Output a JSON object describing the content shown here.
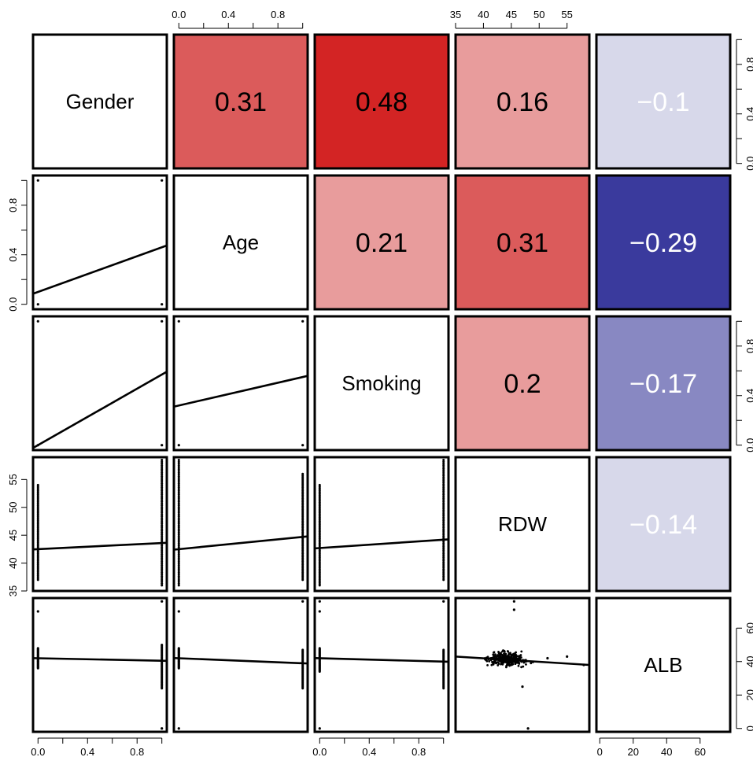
{
  "chart_data": {
    "type": "scatterplot-matrix",
    "variables": [
      "Gender",
      "Age",
      "Smoking",
      "RDW",
      "ALB"
    ],
    "correlations": [
      {
        "row": 0,
        "col": 1,
        "value": 0.31,
        "label": "0.31"
      },
      {
        "row": 0,
        "col": 2,
        "value": 0.48,
        "label": "0.48"
      },
      {
        "row": 0,
        "col": 3,
        "value": 0.16,
        "label": "0.16"
      },
      {
        "row": 0,
        "col": 4,
        "value": -0.1,
        "label": "−0.1"
      },
      {
        "row": 1,
        "col": 2,
        "value": 0.21,
        "label": "0.21"
      },
      {
        "row": 1,
        "col": 3,
        "value": 0.31,
        "label": "0.31"
      },
      {
        "row": 1,
        "col": 4,
        "value": -0.29,
        "label": "−0.29"
      },
      {
        "row": 2,
        "col": 3,
        "value": 0.2,
        "label": "0.2"
      },
      {
        "row": 2,
        "col": 4,
        "value": -0.17,
        "label": "−0.17"
      },
      {
        "row": 3,
        "col": 4,
        "value": -0.14,
        "label": "−0.14"
      }
    ],
    "cell_colors": {
      "0-1": "#db5b5b",
      "0-2": "#d32424",
      "0-3": "#e89c9c",
      "0-4": "#d7d8ea",
      "1-2": "#e89c9c",
      "1-3": "#db5b5b",
      "1-4": "#3a3a9d",
      "2-3": "#e89c9c",
      "2-4": "#8888c2",
      "3-4": "#d7d8ea"
    },
    "axes": {
      "binary": {
        "range": [
          0,
          1
        ],
        "ticks": [
          0.0,
          0.4,
          0.8
        ],
        "tick_labels": [
          "0.0",
          "0.4",
          "0.8"
        ]
      },
      "RDW": {
        "range": [
          35,
          59
        ],
        "ticks": [
          35,
          40,
          45,
          50,
          55
        ],
        "tick_labels": [
          "35",
          "40",
          "45",
          "50",
          "55"
        ]
      },
      "ALB": {
        "range": [
          -2,
          78
        ],
        "ticks": [
          0,
          20,
          40,
          60
        ],
        "tick_labels": [
          "0",
          "20",
          "40",
          "60"
        ]
      }
    },
    "fit_lines": [
      {
        "row": 1,
        "col": 0,
        "y_at_x0": 0.1,
        "y_at_x1": 0.46
      },
      {
        "row": 2,
        "col": 0,
        "y_at_x0": 0.0,
        "y_at_x1": 0.57
      },
      {
        "row": 2,
        "col": 1,
        "y_at_x0": 0.32,
        "y_at_x1": 0.55
      },
      {
        "row": 3,
        "col": 0,
        "y_at_x0": 42.5,
        "y_at_x1": 43.6
      },
      {
        "row": 3,
        "col": 1,
        "y_at_x0": 42.5,
        "y_at_x1": 44.7
      },
      {
        "row": 3,
        "col": 2,
        "y_at_x0": 42.7,
        "y_at_x1": 44.2
      },
      {
        "row": 4,
        "col": 0,
        "y_at_x0": 42,
        "y_at_x1": 40.5
      },
      {
        "row": 4,
        "col": 1,
        "y_at_x0": 42,
        "y_at_x1": 39
      },
      {
        "row": 4,
        "col": 2,
        "y_at_x0": 42,
        "y_at_x1": 40
      },
      {
        "row": 4,
        "col": 3,
        "line_x": [
          35,
          59
        ],
        "line_y": [
          43,
          38
        ]
      }
    ],
    "binary_points": [
      {
        "row": 1,
        "col": 0,
        "points": [
          [
            0,
            0
          ],
          [
            0,
            1
          ],
          [
            1,
            0
          ],
          [
            1,
            1
          ]
        ]
      },
      {
        "row": 2,
        "col": 0,
        "points": [
          [
            0,
            0
          ],
          [
            0,
            1
          ],
          [
            1,
            0
          ],
          [
            1,
            1
          ]
        ]
      },
      {
        "row": 2,
        "col": 1,
        "points": [
          [
            0,
            0
          ],
          [
            0,
            1
          ],
          [
            1,
            0
          ],
          [
            1,
            1
          ]
        ]
      }
    ],
    "strip_ranges": [
      {
        "row": 3,
        "col": 0,
        "x0": [
          37,
          54
        ],
        "x1": [
          36,
          58.5
        ]
      },
      {
        "row": 3,
        "col": 1,
        "x0": [
          36,
          58.5
        ],
        "x1": [
          37,
          56
        ]
      },
      {
        "row": 3,
        "col": 2,
        "x0": [
          36,
          54
        ],
        "x1": [
          37,
          58.5
        ]
      },
      {
        "row": 4,
        "col": 0,
        "x0": [
          36,
          48
        ],
        "x1": [
          24,
          50
        ],
        "extra0": [
          70
        ],
        "extra1": [
          76,
          0
        ]
      },
      {
        "row": 4,
        "col": 1,
        "x0": [
          36,
          48
        ],
        "x1": [
          24,
          47
        ],
        "extra0": [
          70,
          0
        ],
        "extra1": [
          76
        ]
      },
      {
        "row": 4,
        "col": 2,
        "x0": [
          34,
          48
        ],
        "x1": [
          24,
          47
        ],
        "extra0": [
          76,
          70,
          0
        ],
        "extra1": [
          76
        ]
      }
    ],
    "rdw_alb_cloud": {
      "rdw_center": 44,
      "rdw_spread": 3,
      "alb_center": 41.5,
      "alb_spread": 3.2,
      "n": 320,
      "outliers": [
        [
          45.5,
          76
        ],
        [
          45.5,
          71
        ],
        [
          47,
          25
        ],
        [
          48,
          0
        ],
        [
          58,
          38
        ],
        [
          51.5,
          42
        ],
        [
          55,
          43
        ]
      ]
    }
  }
}
